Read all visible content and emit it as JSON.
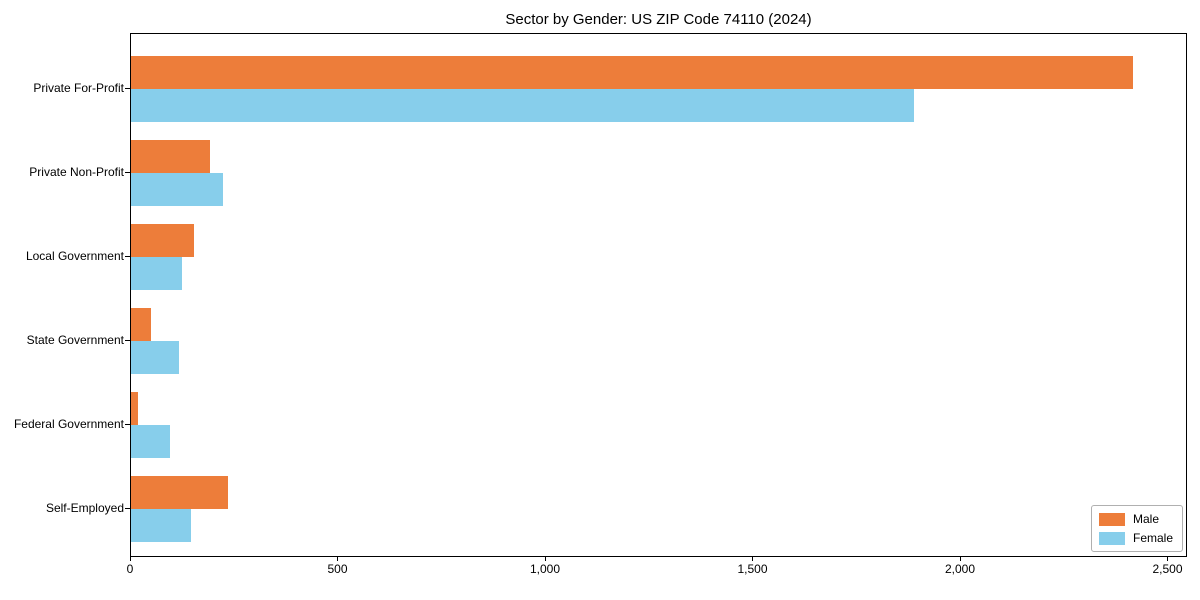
{
  "chart_data": {
    "type": "bar",
    "orientation": "horizontal",
    "title": "Sector by Gender: US ZIP Code 74110 (2024)",
    "categories": [
      "Private For-Profit",
      "Private Non-Profit",
      "Local Government",
      "State Government",
      "Federal Government",
      "Self-Employed"
    ],
    "series": [
      {
        "name": "Male",
        "color": "#ED7D3A",
        "values": [
          2420,
          190,
          152,
          49,
          16,
          233
        ]
      },
      {
        "name": "Female",
        "color": "#87CEEB",
        "values": [
          1890,
          221,
          123,
          116,
          94,
          145
        ]
      }
    ],
    "xlabel": "",
    "ylabel": "",
    "xlim": [
      0,
      2547
    ],
    "xticks": [
      0,
      500,
      1000,
      1500,
      2000,
      2500
    ],
    "xtick_labels": [
      "0",
      "500",
      "1,000",
      "1,500",
      "2,000",
      "2,500"
    ],
    "grid": false,
    "legend": {
      "position": "lower right",
      "labels": [
        "Male",
        "Female"
      ]
    }
  }
}
